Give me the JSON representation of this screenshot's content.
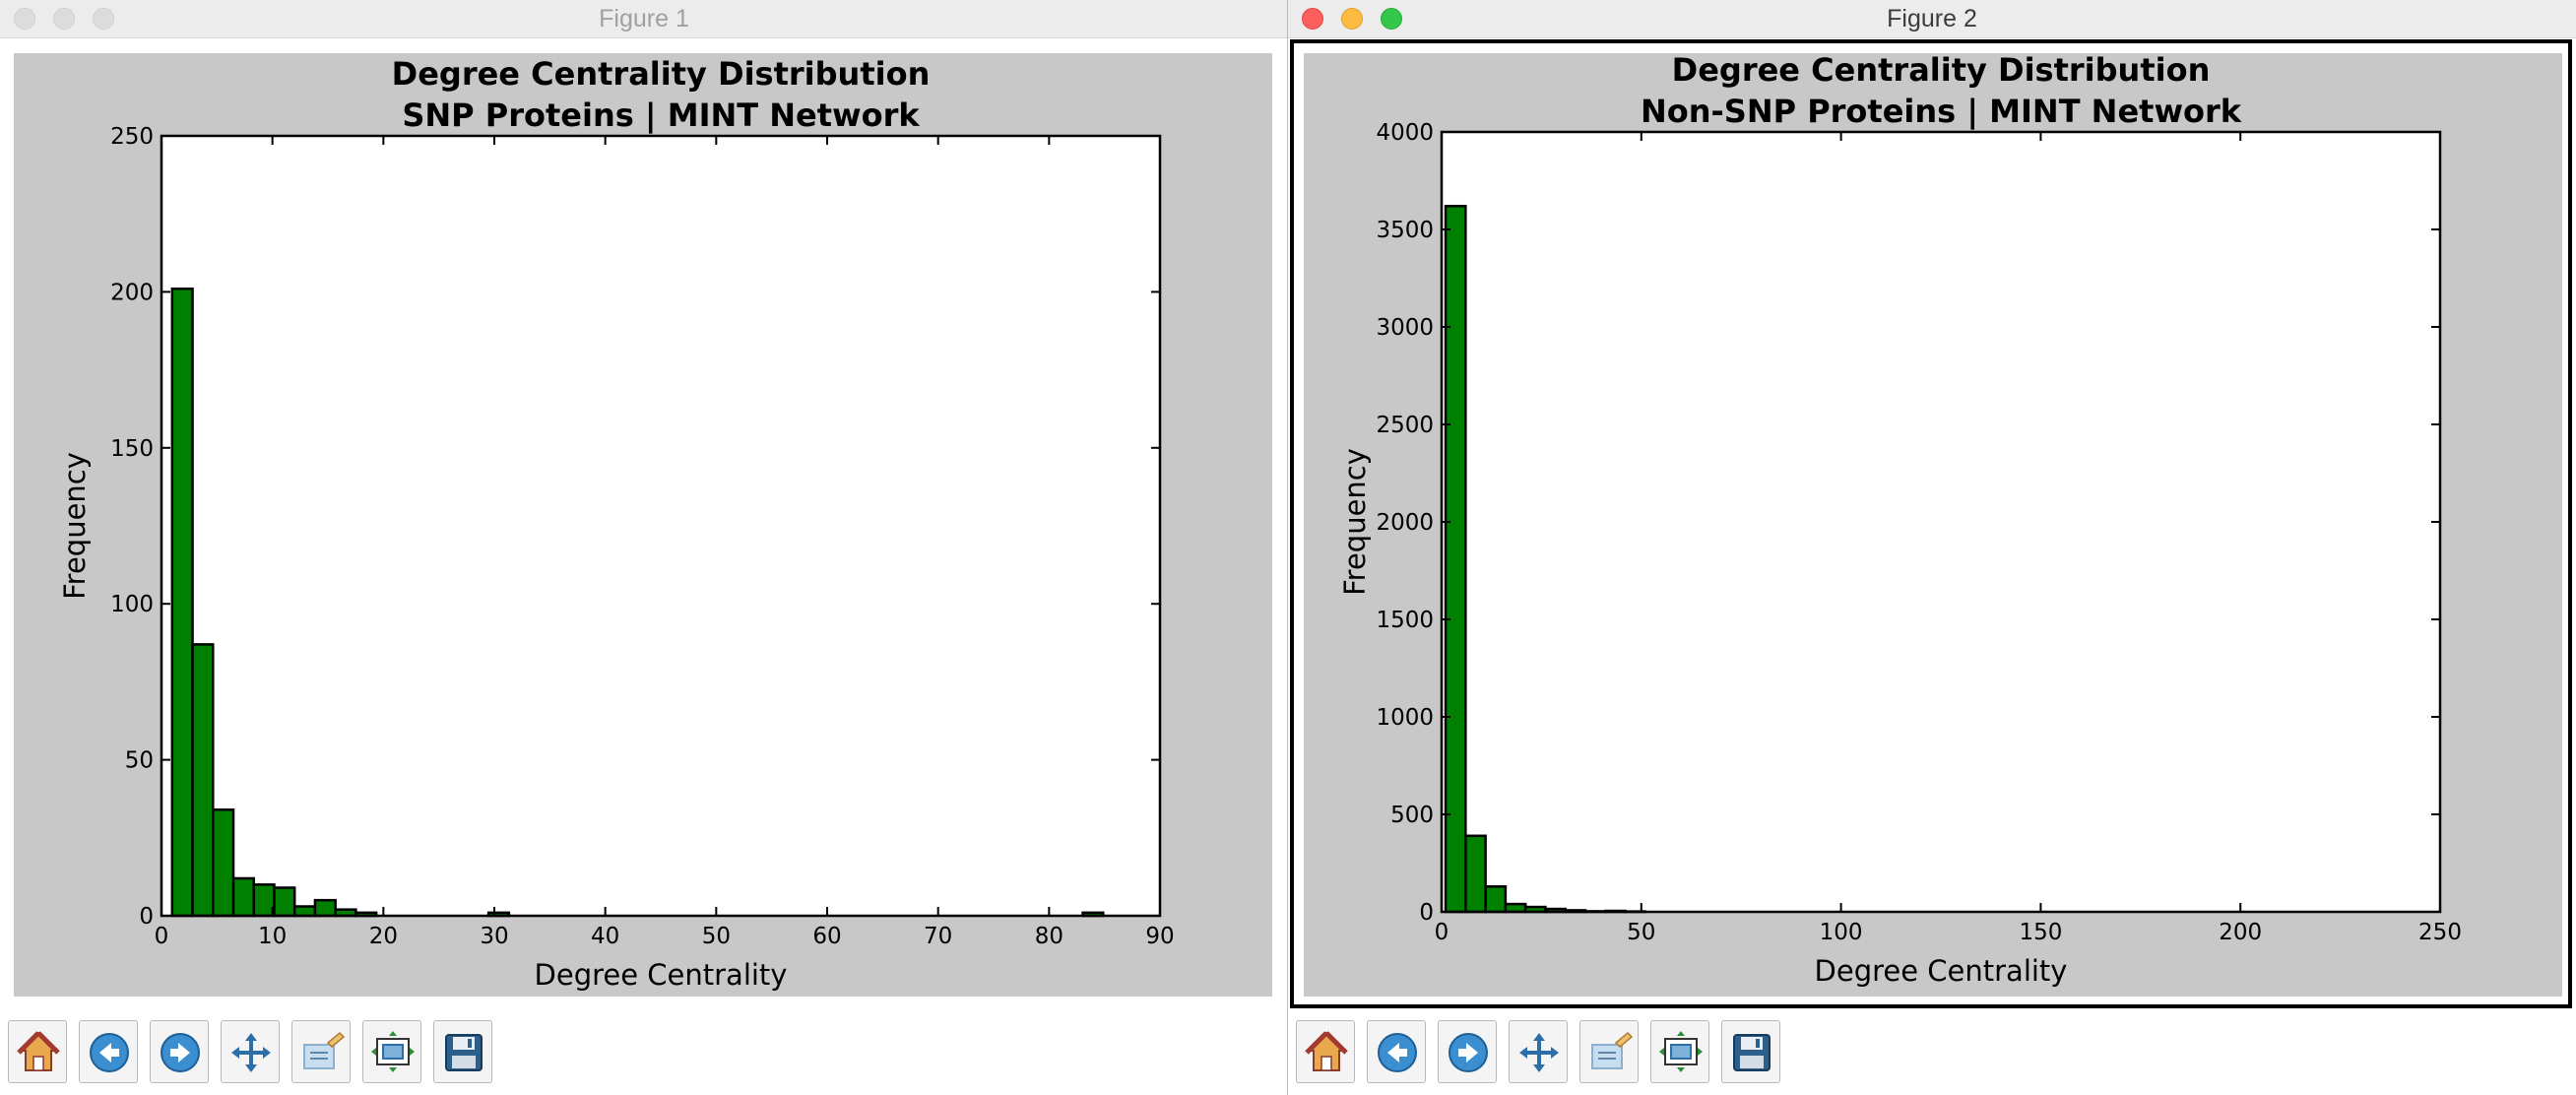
{
  "windows": [
    {
      "title": "Figure 1",
      "toolbar": [
        "home-icon",
        "back-icon",
        "forward-icon",
        "pan-icon",
        "configure-subplots-icon",
        "zoom-to-rect-icon",
        "save-icon"
      ]
    },
    {
      "title": "Figure 2",
      "toolbar": [
        "home-icon",
        "back-icon",
        "forward-icon",
        "pan-icon",
        "configure-subplots-icon",
        "zoom-to-rect-icon",
        "save-icon"
      ]
    }
  ],
  "chart_data": [
    {
      "type": "bar",
      "title": "Degree Centrality Distribution\nSNP Proteins | MINT Network",
      "title_lines": [
        "Degree Centrality Distribution",
        "SNP Proteins | MINT Network"
      ],
      "xlabel": "Degree Centrality",
      "ylabel": "Frequency",
      "xlim": [
        0,
        90
      ],
      "ylim": [
        0,
        250
      ],
      "xticks": [
        0,
        10,
        20,
        30,
        40,
        50,
        60,
        70,
        80,
        90
      ],
      "yticks": [
        0,
        50,
        100,
        150,
        200,
        250
      ],
      "bar_color": "#008000",
      "bin_width": 1.84,
      "bins": [
        {
          "x0": 0.96,
          "value": 201
        },
        {
          "x0": 2.8,
          "value": 87
        },
        {
          "x0": 4.64,
          "value": 34
        },
        {
          "x0": 6.48,
          "value": 12
        },
        {
          "x0": 8.32,
          "value": 10
        },
        {
          "x0": 10.16,
          "value": 9
        },
        {
          "x0": 12.0,
          "value": 3
        },
        {
          "x0": 13.84,
          "value": 5
        },
        {
          "x0": 15.68,
          "value": 2
        },
        {
          "x0": 17.52,
          "value": 1
        },
        {
          "x0": 29.48,
          "value": 1
        },
        {
          "x0": 83.04,
          "value": 1
        }
      ]
    },
    {
      "type": "bar",
      "title": "Degree Centrality Distribution\nNon-SNP Proteins | MINT Network",
      "title_lines": [
        "Degree Centrality Distribution",
        "Non-SNP Proteins | MINT Network"
      ],
      "xlabel": "Degree Centrality",
      "ylabel": "Frequency",
      "xlim": [
        0,
        250
      ],
      "ylim": [
        0,
        4000
      ],
      "xticks": [
        0,
        50,
        100,
        150,
        200,
        250
      ],
      "yticks": [
        0,
        500,
        1000,
        1500,
        2000,
        2500,
        3000,
        3500,
        4000
      ],
      "bar_color": "#008000",
      "bin_width": 5.0,
      "bins": [
        {
          "x0": 1,
          "value": 3620
        },
        {
          "x0": 6,
          "value": 390
        },
        {
          "x0": 11,
          "value": 130
        },
        {
          "x0": 16,
          "value": 40
        },
        {
          "x0": 21,
          "value": 25
        },
        {
          "x0": 26,
          "value": 15
        },
        {
          "x0": 31,
          "value": 8
        },
        {
          "x0": 36,
          "value": 3
        },
        {
          "x0": 41,
          "value": 5
        },
        {
          "x0": 46,
          "value": 2
        }
      ]
    }
  ]
}
